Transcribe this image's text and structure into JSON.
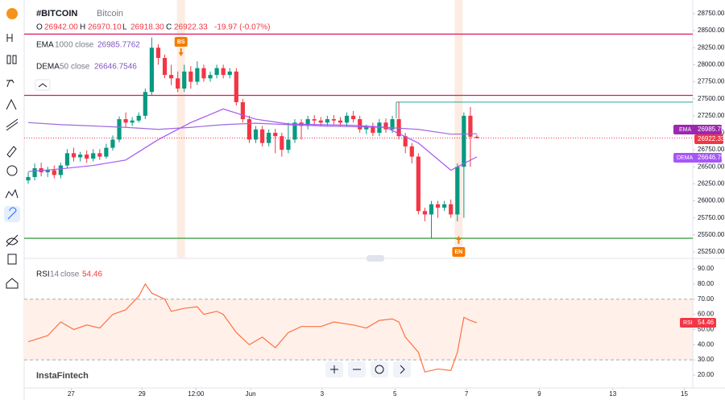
{
  "header": {
    "symbol": "#BITCOIN",
    "name": "Bitcoin",
    "o_label": "O",
    "o": "26942.00",
    "h_label": "H",
    "h": "26970.10",
    "l_label": "L",
    "l": "26918.30",
    "c_label": "C",
    "c": "26922.33",
    "change": "-19.97 (-0.07%)",
    "ema": {
      "name": "EMA",
      "p1": "100",
      "p2": "0",
      "p3": "close",
      "value": "26985.7762"
    },
    "dema": {
      "name": "DEMA",
      "p1": "50",
      "p2": "close",
      "value": "26646.7546"
    },
    "rsi": {
      "name": "RSI",
      "p1": "14",
      "p2": "close",
      "value": "54.46"
    },
    "brand": "InstaFintech"
  },
  "price_tags": {
    "ema_name": "EMA",
    "ema_value": "26985.78",
    "last": "26922.33",
    "dema_name": "DEMA",
    "dema_value": "26646.75",
    "rsi_name": "RSI",
    "rsi_value": "54.46"
  },
  "markers": [
    {
      "label": "BS",
      "x": 23.5
    },
    {
      "label": "EN",
      "x": 66.2
    }
  ],
  "chart_data": [
    {
      "type": "candlestick",
      "up_color": "#089981",
      "down_color": "#f23645",
      "open": [
        26300,
        26350,
        26480,
        26420,
        26450,
        26380,
        26520,
        26700,
        26640,
        26680,
        26620,
        26700,
        26650,
        26780,
        26900,
        27200,
        27150,
        27180,
        27250,
        27600,
        28250,
        28100,
        27850,
        27800,
        27650,
        27900,
        27750,
        27950,
        27800,
        27850,
        27950,
        27850,
        27900,
        27450,
        27200,
        26900,
        27050,
        26850,
        27000,
        26950,
        26750,
        26900,
        27150,
        27100,
        27200,
        27180,
        27150,
        27200,
        27180,
        27150,
        27250,
        27200,
        27050,
        27100,
        27000,
        27150,
        27050,
        27200,
        26950,
        26800,
        26650,
        25850,
        25800,
        25950,
        25900,
        25950,
        25800,
        26500,
        27250,
        26942
      ],
      "high": [
        26420,
        26550,
        26560,
        26500,
        26520,
        26560,
        26760,
        26780,
        26720,
        26740,
        26760,
        26760,
        26840,
        26960,
        27240,
        27300,
        27230,
        27300,
        27650,
        28400,
        28300,
        28150,
        28000,
        27900,
        28000,
        27980,
        28050,
        28000,
        27900,
        28000,
        28000,
        27950,
        27950,
        27500,
        27250,
        27100,
        27100,
        27050,
        27060,
        27000,
        27150,
        27200,
        27200,
        27250,
        27260,
        27230,
        27250,
        27260,
        27230,
        27300,
        27320,
        27250,
        27120,
        27150,
        27200,
        27210,
        27250,
        27450,
        27000,
        26850,
        26700,
        25900,
        26000,
        26000,
        26000,
        26020,
        26550,
        27300,
        27380,
        26970.1
      ],
      "low": [
        26250,
        26300,
        26360,
        26350,
        26330,
        26330,
        26480,
        26580,
        26580,
        26560,
        26580,
        26600,
        26620,
        26740,
        26860,
        27080,
        27100,
        27150,
        27200,
        27550,
        28000,
        27800,
        27700,
        27600,
        27600,
        27650,
        27700,
        27750,
        27750,
        27800,
        27800,
        27800,
        27400,
        27150,
        26850,
        26850,
        26800,
        26800,
        26700,
        26650,
        26700,
        26850,
        26900,
        27050,
        27100,
        27100,
        27100,
        27120,
        27100,
        27100,
        27150,
        27000,
        26980,
        26950,
        26950,
        27000,
        27000,
        26900,
        26700,
        26550,
        25800,
        25700,
        25450,
        25750,
        25850,
        25750,
        25700,
        25750,
        26500,
        26918.3
      ],
      "close": [
        26350,
        26480,
        26420,
        26450,
        26380,
        26520,
        26700,
        26640,
        26680,
        26620,
        26700,
        26650,
        26780,
        26900,
        27200,
        27150,
        27180,
        27250,
        27600,
        28250,
        28100,
        27850,
        27800,
        27650,
        27900,
        27750,
        27950,
        27800,
        27850,
        27950,
        27850,
        27900,
        27450,
        27200,
        26900,
        27050,
        26850,
        27000,
        26950,
        26750,
        26900,
        27150,
        27100,
        27200,
        27180,
        27150,
        27200,
        27180,
        27150,
        27250,
        27200,
        27050,
        27100,
        27000,
        27150,
        27050,
        27200,
        26950,
        26800,
        26650,
        25850,
        25800,
        25950,
        25900,
        25950,
        25800,
        26500,
        27250,
        26942,
        26922.33
      ],
      "lines": [
        {
          "name": "EMA",
          "color": "#9c6ade",
          "x": [
            0,
            5,
            10,
            15,
            20,
            25,
            30,
            35,
            40,
            45,
            50,
            55,
            60,
            65,
            69
          ],
          "values": [
            27150,
            27120,
            27100,
            27080,
            27050,
            27080,
            27120,
            27140,
            27120,
            27100,
            27090,
            27080,
            27050,
            26980,
            26985.78
          ]
        },
        {
          "name": "DEMA",
          "color": "#a855f7",
          "x": [
            0,
            5,
            10,
            15,
            20,
            25,
            30,
            35,
            40,
            45,
            50,
            55,
            60,
            65,
            69
          ],
          "values": [
            26430,
            26470,
            26520,
            26600,
            26900,
            27150,
            27350,
            27200,
            27130,
            27120,
            27110,
            27080,
            26850,
            26450,
            26646.75
          ]
        }
      ],
      "hlines": [
        {
          "value": 28450,
          "color": "#d81b60"
        },
        {
          "value": 27550,
          "color": "#d81b60"
        },
        {
          "value": 25450,
          "color": "#43a047"
        }
      ],
      "ray": {
        "value": 27450,
        "start": 56.6,
        "color": "#26a69a"
      },
      "last_line": {
        "value": 26922.33,
        "color": "#f23645"
      },
      "bands": [
        23.5,
        66.2
      ],
      "xlim": [
        -0.62,
        102.2
      ],
      "xticks": [
        {
          "value": 6.6,
          "label": "27"
        },
        {
          "value": 17.5,
          "label": "29"
        },
        {
          "value": 25.8,
          "label": "12:00"
        },
        {
          "value": 34.2,
          "label": "Jun"
        },
        {
          "value": 45.2,
          "label": "3"
        },
        {
          "value": 56.4,
          "label": "5"
        },
        {
          "value": 67.4,
          "label": "7"
        },
        {
          "value": 78.6,
          "label": "9"
        },
        {
          "value": 89.9,
          "label": "13"
        },
        {
          "value": 100.9,
          "label": "15"
        }
      ],
      "ylim": [
        25167,
        28951
      ],
      "yticks": [
        {
          "value": 25250,
          "label": "25250.00"
        },
        {
          "value": 25500,
          "label": "25500.00"
        },
        {
          "value": 25750,
          "label": "25750.00"
        },
        {
          "value": 26000,
          "label": "26000.00"
        },
        {
          "value": 26250,
          "label": "26250.00"
        },
        {
          "value": 26500,
          "label": "26500.00"
        },
        {
          "value": 26750,
          "label": "26750.00"
        },
        {
          "value": 27000,
          "label": "27000.00"
        },
        {
          "value": 27250,
          "label": "27250.00"
        },
        {
          "value": 27500,
          "label": "27500.00"
        },
        {
          "value": 27750,
          "label": "27750.00"
        },
        {
          "value": 28000,
          "label": "28000.00"
        },
        {
          "value": 28250,
          "label": "28250.00"
        },
        {
          "value": 28500,
          "label": "28500.00"
        },
        {
          "value": 28750,
          "label": "28750.00"
        }
      ]
    },
    {
      "type": "line",
      "name": "RSI",
      "color": "#ff7043",
      "x": [
        0,
        3,
        5,
        7,
        9,
        11,
        13,
        15,
        17,
        18,
        19,
        21,
        22,
        24,
        26,
        27,
        29,
        30,
        32,
        34,
        36,
        38,
        40,
        42,
        45,
        47,
        50,
        52,
        54,
        56,
        57,
        58,
        59,
        60,
        61,
        63,
        65,
        66,
        67,
        68,
        69
      ],
      "values": [
        42,
        46,
        55,
        50,
        53,
        51,
        60,
        63,
        72,
        80,
        74,
        70,
        62,
        64,
        65,
        60,
        62,
        60,
        48,
        40,
        45,
        38,
        48,
        52,
        52,
        55,
        53,
        51,
        56,
        57,
        55,
        45,
        40,
        35,
        22,
        24,
        23,
        35,
        58,
        56,
        54.46
      ],
      "band": [
        30,
        70
      ],
      "ylim": [
        11.5,
        96.4
      ],
      "yticks": [
        {
          "value": 20,
          "label": "20.00"
        },
        {
          "value": 30,
          "label": "30.00"
        },
        {
          "value": 40,
          "label": "40.00"
        },
        {
          "value": 50,
          "label": "50.00"
        },
        {
          "value": 60,
          "label": "60.00"
        },
        {
          "value": 70,
          "label": "70.00"
        },
        {
          "value": 80,
          "label": "80.00"
        },
        {
          "value": 90,
          "label": "90.00"
        }
      ]
    }
  ]
}
